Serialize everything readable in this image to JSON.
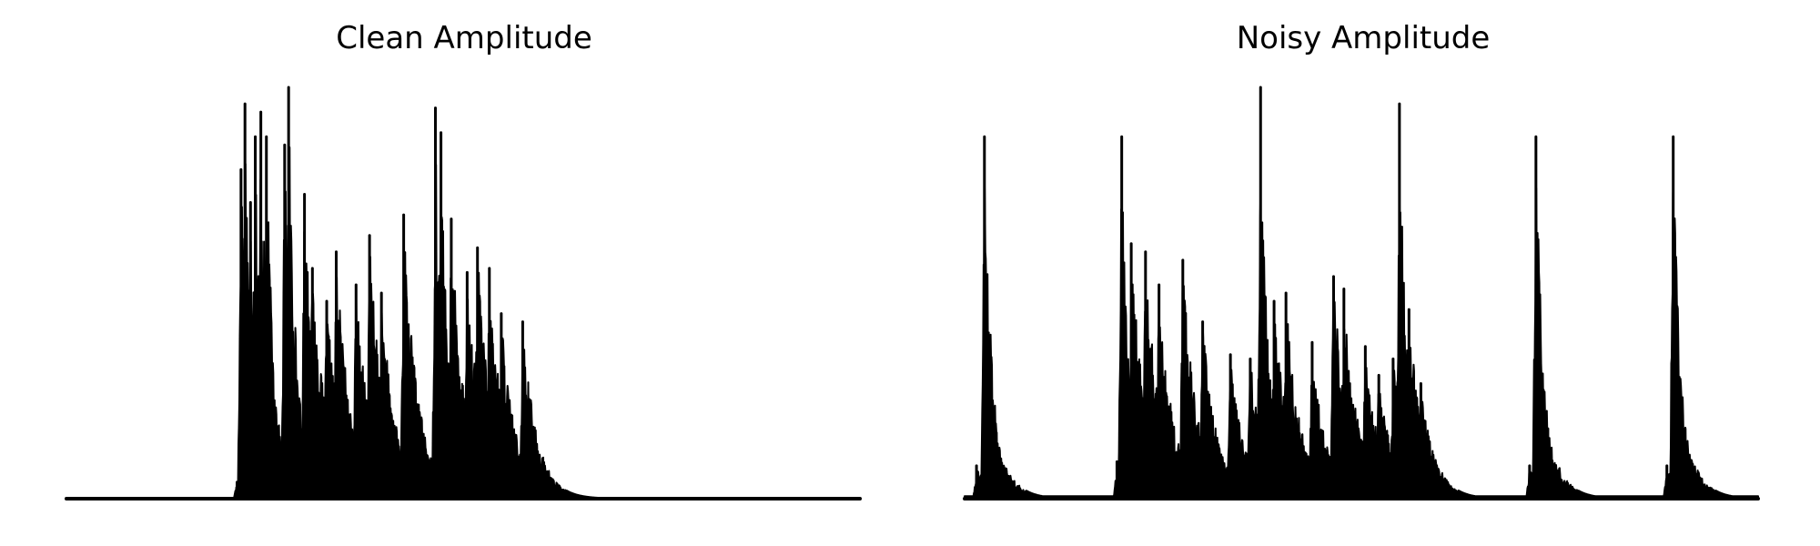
{
  "chart_data": [
    {
      "type": "area",
      "title": "Clean Amplitude",
      "xlabel": "",
      "ylabel": "",
      "axes_visible": false,
      "grid": false,
      "x_domain": [
        0,
        1
      ],
      "y_domain": [
        0,
        1
      ],
      "bursts": [
        {
          "x": 0.215,
          "y": 0.04
        },
        {
          "x": 0.22,
          "y": 0.8
        },
        {
          "x": 0.225,
          "y": 0.96
        },
        {
          "x": 0.232,
          "y": 0.72
        },
        {
          "x": 0.238,
          "y": 0.88
        },
        {
          "x": 0.245,
          "y": 0.94
        },
        {
          "x": 0.252,
          "y": 0.88
        },
        {
          "x": 0.275,
          "y": 0.86
        },
        {
          "x": 0.28,
          "y": 1.0
        },
        {
          "x": 0.3,
          "y": 0.74
        },
        {
          "x": 0.31,
          "y": 0.56
        },
        {
          "x": 0.328,
          "y": 0.48
        },
        {
          "x": 0.34,
          "y": 0.6
        },
        {
          "x": 0.365,
          "y": 0.52
        },
        {
          "x": 0.382,
          "y": 0.64
        },
        {
          "x": 0.397,
          "y": 0.5
        },
        {
          "x": 0.425,
          "y": 0.69
        },
        {
          "x": 0.465,
          "y": 0.95
        },
        {
          "x": 0.472,
          "y": 0.89
        },
        {
          "x": 0.485,
          "y": 0.68
        },
        {
          "x": 0.505,
          "y": 0.55
        },
        {
          "x": 0.518,
          "y": 0.61
        },
        {
          "x": 0.533,
          "y": 0.56
        },
        {
          "x": 0.548,
          "y": 0.45
        },
        {
          "x": 0.575,
          "y": 0.43
        },
        {
          "x": 0.61,
          "y": 0.05
        }
      ]
    },
    {
      "type": "area",
      "title": "Noisy Amplitude",
      "xlabel": "",
      "ylabel": "",
      "axes_visible": false,
      "grid": false,
      "x_domain": [
        0,
        1
      ],
      "y_domain": [
        0,
        1
      ],
      "bursts": [
        {
          "x": 0.015,
          "y": 0.08
        },
        {
          "x": 0.025,
          "y": 0.88
        },
        {
          "x": 0.04,
          "y": 0.16
        },
        {
          "x": 0.192,
          "y": 0.09
        },
        {
          "x": 0.198,
          "y": 0.88
        },
        {
          "x": 0.21,
          "y": 0.62
        },
        {
          "x": 0.228,
          "y": 0.6
        },
        {
          "x": 0.245,
          "y": 0.52
        },
        {
          "x": 0.275,
          "y": 0.58
        },
        {
          "x": 0.3,
          "y": 0.43
        },
        {
          "x": 0.335,
          "y": 0.35
        },
        {
          "x": 0.36,
          "y": 0.34
        },
        {
          "x": 0.373,
          "y": 1.0
        },
        {
          "x": 0.39,
          "y": 0.48
        },
        {
          "x": 0.405,
          "y": 0.5
        },
        {
          "x": 0.438,
          "y": 0.38
        },
        {
          "x": 0.465,
          "y": 0.54
        },
        {
          "x": 0.478,
          "y": 0.51
        },
        {
          "x": 0.505,
          "y": 0.37
        },
        {
          "x": 0.522,
          "y": 0.3
        },
        {
          "x": 0.54,
          "y": 0.34
        },
        {
          "x": 0.548,
          "y": 0.96
        },
        {
          "x": 0.56,
          "y": 0.46
        },
        {
          "x": 0.575,
          "y": 0.28
        },
        {
          "x": 0.712,
          "y": 0.08
        },
        {
          "x": 0.72,
          "y": 0.88
        },
        {
          "x": 0.735,
          "y": 0.17
        },
        {
          "x": 0.885,
          "y": 0.08
        },
        {
          "x": 0.893,
          "y": 0.88
        },
        {
          "x": 0.908,
          "y": 0.17
        }
      ]
    }
  ]
}
